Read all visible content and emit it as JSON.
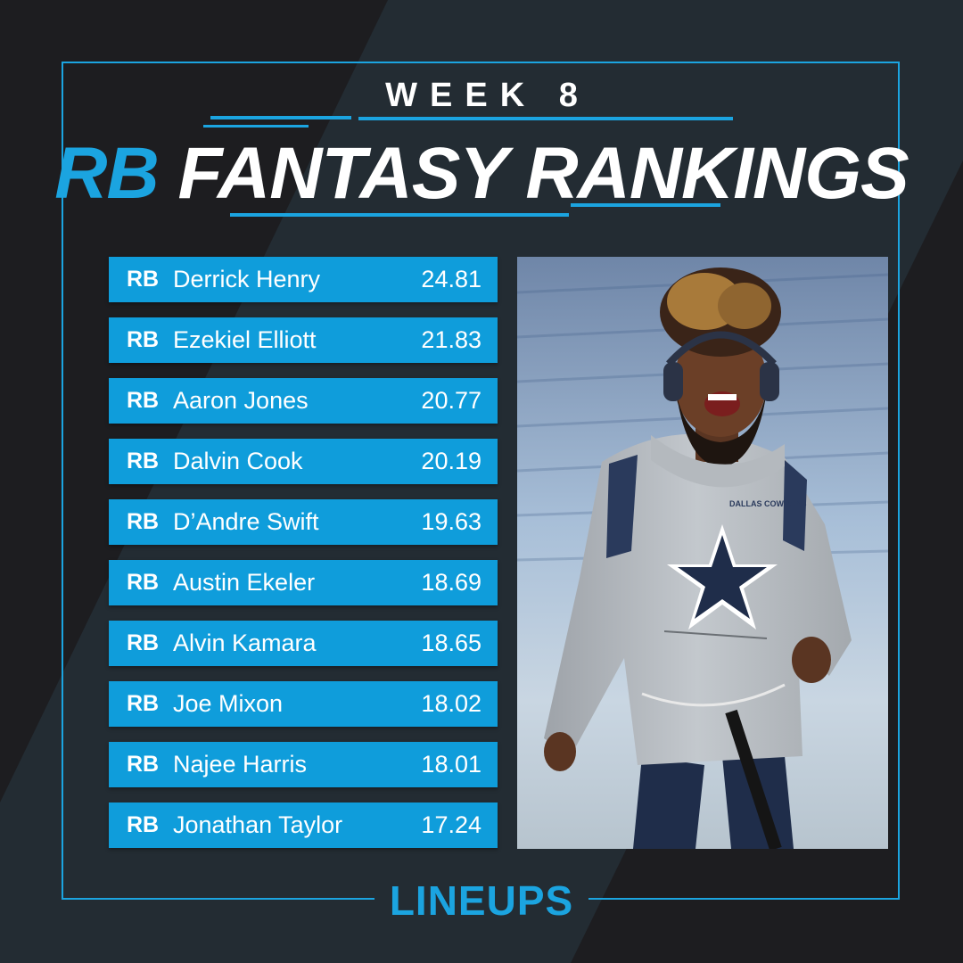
{
  "header": {
    "week": "WEEK 8",
    "title_highlight": "RB",
    "title_rest": "FANTASY RANKINGS"
  },
  "rankings": [
    {
      "pos": "RB",
      "name": "Derrick Henry",
      "score": "24.81"
    },
    {
      "pos": "RB",
      "name": "Ezekiel Elliott",
      "score": "21.83"
    },
    {
      "pos": "RB",
      "name": "Aaron Jones",
      "score": "20.77"
    },
    {
      "pos": "RB",
      "name": "Dalvin Cook",
      "score": "20.19"
    },
    {
      "pos": "RB",
      "name": "D’Andre Swift",
      "score": "19.63"
    },
    {
      "pos": "RB",
      "name": "Austin Ekeler",
      "score": "18.69"
    },
    {
      "pos": "RB",
      "name": "Alvin Kamara",
      "score": "18.65"
    },
    {
      "pos": "RB",
      "name": "Joe Mixon",
      "score": "18.02"
    },
    {
      "pos": "RB",
      "name": "Najee Harris",
      "score": "18.01"
    },
    {
      "pos": "RB",
      "name": "Jonathan Taylor",
      "score": "17.24"
    }
  ],
  "photo": {
    "jersey_text": "DALLAS COWBOYS"
  },
  "footer": {
    "logo_text": "LINEUPS"
  },
  "colors": {
    "accent": "#1ba4e0",
    "row_bg": "#0f9ddb",
    "background_dark": "#1d1d20",
    "background_stripe": "#232c33"
  }
}
